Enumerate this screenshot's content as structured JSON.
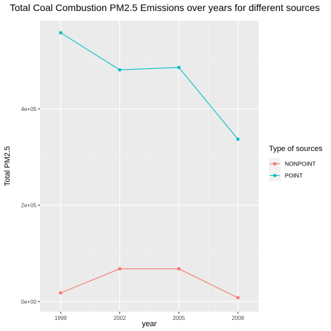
{
  "chart_data": {
    "type": "line",
    "title": "Total Coal Combustion PM2.5 Emissions over years for different sources",
    "xlabel": "year",
    "ylabel": "Total PM2.5",
    "x": [
      1999,
      2002,
      2005,
      2008
    ],
    "x_tick_labels": [
      "1999",
      "2002",
      "2005",
      "2008"
    ],
    "y_ticks": [
      0,
      200000,
      400000
    ],
    "y_tick_labels": [
      "0e+00",
      "2e+05",
      "4e+05"
    ],
    "xlim": [
      1997.95,
      2009.05
    ],
    "ylim": [
      -21000,
      583000
    ],
    "grid": true,
    "legend": {
      "title": "Type of sources",
      "placement": "right"
    },
    "series": [
      {
        "name": "NONPOINT",
        "color": "#F8766D",
        "values": [
          18000,
          68000,
          68000,
          8000
        ]
      },
      {
        "name": "POINT",
        "color": "#00BFC4",
        "values": [
          558000,
          481000,
          486000,
          337000
        ]
      }
    ]
  }
}
